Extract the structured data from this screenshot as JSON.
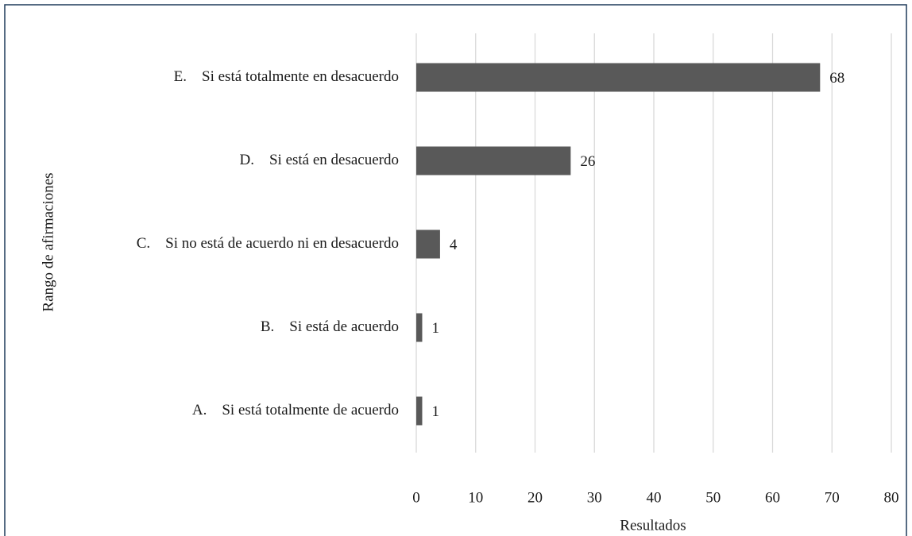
{
  "chart_data": {
    "type": "bar",
    "orientation": "horizontal",
    "x_label": "Resultados",
    "y_label": "Rango de afirmaciones",
    "categories": [
      "A.    Si está totalmente de acuerdo",
      "B.    Si está de acuerdo",
      "C.    Si no está de acuerdo ni en desacuerdo",
      "D.    Si está en desacuerdo",
      "E.    Si está totalmente en desacuerdo"
    ],
    "values": [
      1,
      1,
      4,
      26,
      68
    ],
    "color": "#595959",
    "xlim": [
      0,
      80
    ],
    "xticks": [
      0,
      10,
      20,
      30,
      40,
      50,
      60,
      70,
      80
    ],
    "grid": true
  }
}
